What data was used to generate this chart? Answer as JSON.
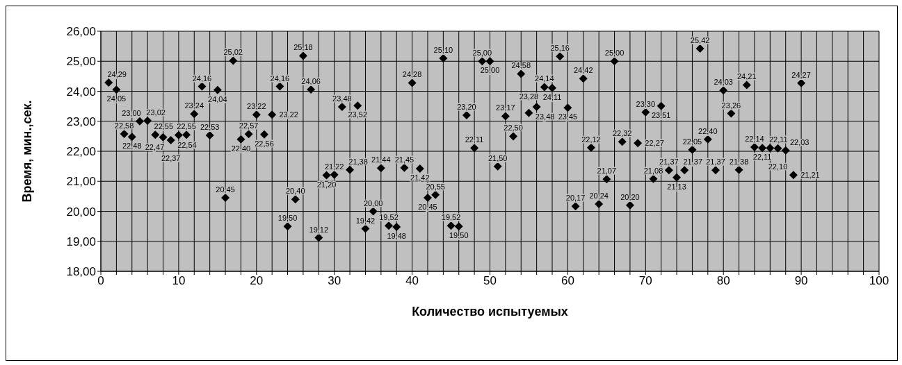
{
  "chart_data": {
    "type": "scatter",
    "xlabel": "Количество испытуемых",
    "ylabel": "Время, мин.,сек.",
    "x": [
      1,
      2,
      3,
      4,
      5,
      6,
      7,
      8,
      9,
      10,
      11,
      12,
      13,
      14,
      15,
      16,
      17,
      18,
      19,
      20,
      21,
      22,
      23,
      24,
      25,
      26,
      27,
      28,
      29,
      30,
      31,
      32,
      33,
      34,
      35,
      36,
      37,
      38,
      39,
      40,
      41,
      42,
      43,
      44,
      45,
      46,
      47,
      48,
      49,
      50,
      51,
      52,
      53,
      54,
      55,
      56,
      57,
      58,
      59,
      60,
      61,
      62,
      63,
      64,
      65,
      66,
      67,
      68,
      69,
      70,
      71,
      72,
      73,
      74,
      75,
      76,
      77,
      78,
      79,
      80,
      81,
      82,
      83,
      84,
      85,
      86,
      87,
      88,
      89,
      90
    ],
    "values": [
      24.29,
      24.05,
      22.58,
      22.48,
      23.0,
      23.02,
      22.55,
      22.47,
      22.37,
      22.54,
      22.55,
      23.24,
      24.16,
      22.53,
      24.04,
      20.45,
      25.02,
      22.4,
      22.57,
      23.22,
      22.56,
      23.22,
      24.16,
      19.5,
      20.4,
      25.18,
      24.06,
      19.12,
      21.2,
      21.22,
      23.48,
      21.38,
      23.52,
      19.42,
      20.0,
      21.44,
      19.52,
      19.48,
      21.45,
      24.28,
      21.42,
      20.45,
      20.55,
      25.1,
      19.52,
      19.5,
      23.2,
      22.11,
      25.0,
      25.0,
      21.5,
      23.17,
      22.5,
      24.58,
      23.28,
      23.48,
      24.14,
      24.11,
      25.16,
      23.45,
      20.17,
      24.42,
      22.12,
      20.24,
      21.07,
      25.0,
      22.32,
      20.2,
      22.27,
      23.3,
      21.08,
      23.51,
      21.37,
      21.13,
      21.37,
      22.05,
      25.42,
      22.4,
      21.37,
      24.03,
      23.26,
      21.38,
      24.21,
      22.14,
      22.11,
      22.11,
      22.1,
      22.03,
      21.21,
      24.27
    ],
    "value_labels": [
      "24,29",
      "24,05",
      "22,58",
      "22,48",
      "23,00",
      "23,02",
      "22,55",
      "22,47",
      "22,37",
      "22,54",
      "22,55",
      "23,24",
      "24,16",
      "22,53",
      "24,04",
      "20,45",
      "25,02",
      "22,40",
      "22,57",
      "23,22",
      "22,56",
      "23,22",
      "24,16",
      "19,50",
      "20,40",
      "25,18",
      "24,06",
      "19,12",
      "21,20",
      "21,22",
      "23,48",
      "21,38",
      "23,52",
      "19,42",
      "20,00",
      "21,44",
      "19,52",
      "19,48",
      "21,45",
      "24,28",
      "21,42",
      "20,45",
      "20,55",
      "25,10",
      "19,52",
      "19,50",
      "23,20",
      "22,11",
      "25,00",
      "25,00",
      "21,50",
      "23,17",
      "22,50",
      "24,58",
      "23,28",
      "23,48",
      "24,14",
      "24,11",
      "25,16",
      "23,45",
      "20,17",
      "24,42",
      "22,12",
      "20,24",
      "21,07",
      "25,00",
      "22,32",
      "20,20",
      "22,27",
      "23,30",
      "21,08",
      "23,51",
      "21,37",
      "21,13",
      "21,37",
      "22,05",
      "25,42",
      "22,40",
      "21,37",
      "24,03",
      "23,26",
      "21,38",
      "24,21",
      "22,14",
      "22,11",
      "22,11",
      "22,10",
      "22,03",
      "21,21",
      "24,27"
    ],
    "color": "#000000",
    "marker": "diamond",
    "grid": true,
    "xlim": [
      0,
      100
    ],
    "xticks": [
      0,
      {
        "value": 2,
        "label": null
      },
      {
        "value": 4,
        "label": null
      },
      {
        "value": 6,
        "label": null
      },
      {
        "value": 8,
        "label": null
      },
      10,
      {
        "value": 12,
        "label": null
      },
      {
        "value": 14,
        "label": null
      },
      {
        "value": 16,
        "label": null
      },
      {
        "value": 18,
        "label": null
      },
      20,
      {
        "value": 22,
        "label": null
      },
      {
        "value": 24,
        "label": null
      },
      {
        "value": 26,
        "label": null
      },
      {
        "value": 28,
        "label": null
      },
      30,
      {
        "value": 32,
        "label": null
      },
      {
        "value": 34,
        "label": null
      },
      {
        "value": 36,
        "label": null
      },
      {
        "value": 38,
        "label": null
      },
      40,
      {
        "value": 42,
        "label": null
      },
      {
        "value": 44,
        "label": null
      },
      {
        "value": 46,
        "label": null
      },
      {
        "value": 48,
        "label": null
      },
      50,
      {
        "value": 52,
        "label": null
      },
      {
        "value": 54,
        "label": null
      },
      {
        "value": 56,
        "label": null
      },
      {
        "value": 58,
        "label": null
      },
      60,
      {
        "value": 62,
        "label": null
      },
      {
        "value": 64,
        "label": null
      },
      {
        "value": 66,
        "label": null
      },
      {
        "value": 68,
        "label": null
      },
      70,
      {
        "value": 72,
        "label": null
      },
      {
        "value": 74,
        "label": null
      },
      {
        "value": 76,
        "label": null
      },
      {
        "value": 78,
        "label": null
      },
      80,
      {
        "value": 82,
        "label": null
      },
      {
        "value": 84,
        "label": null
      },
      {
        "value": 86,
        "label": null
      },
      {
        "value": 88,
        "label": null
      },
      90,
      {
        "value": 92,
        "label": null
      },
      {
        "value": 94,
        "label": null
      },
      {
        "value": 96,
        "label": null
      },
      {
        "value": 98,
        "label": null
      },
      100
    ],
    "ylim": [
      18,
      26
    ],
    "yticks": [
      {
        "value": 18,
        "label": "18,00"
      },
      {
        "value": 19,
        "label": "19,00"
      },
      {
        "value": 20,
        "label": "20,00"
      },
      {
        "value": 21,
        "label": "21,00"
      },
      {
        "value": 22,
        "label": "22,00"
      },
      {
        "value": 23,
        "label": "23,00"
      },
      {
        "value": 24,
        "label": "24,00"
      },
      {
        "value": 25,
        "label": "25,00"
      },
      {
        "value": 26,
        "label": "26,00"
      }
    ]
  }
}
